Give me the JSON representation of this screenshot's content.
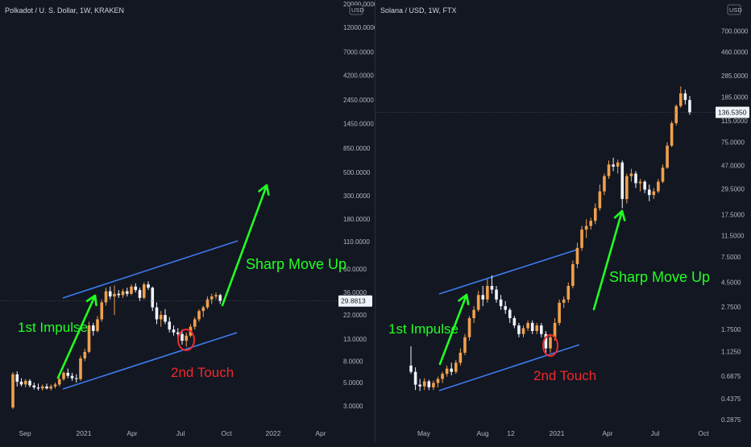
{
  "chart_data": [
    {
      "type": "candlestick",
      "title": "Polkadot / U. S. Dollar, 1W, KRAKEN",
      "price_scale": "log",
      "unit_badge": "USD",
      "last_price": "29.8813",
      "y_ticks": [
        "20000.0000",
        "12000.0000",
        "7000.0000",
        "4200.0000",
        "2450.0000",
        "1450.0000",
        "850.0000",
        "500.0000",
        "300.0000",
        "180.0000",
        "110.0000",
        "60.0000",
        "36.0000",
        "22.0000",
        "13.0000",
        "8.0000",
        "5.0000",
        "3.0000"
      ],
      "x_ticks": [
        "Sep",
        "2021",
        "Apr",
        "Jul",
        "Oct",
        "2022",
        "Apr"
      ],
      "annotations": [
        "1st Impulse",
        "Sharp Move Up",
        "2nd Touch"
      ],
      "candles": [
        {
          "o": 2.9,
          "h": 6.3,
          "l": 2.8,
          "c": 6.0
        },
        {
          "o": 6.0,
          "h": 6.4,
          "l": 4.6,
          "c": 5.1
        },
        {
          "o": 5.1,
          "h": 5.5,
          "l": 4.6,
          "c": 4.8
        },
        {
          "o": 4.8,
          "h": 5.4,
          "l": 4.5,
          "c": 5.2
        },
        {
          "o": 5.2,
          "h": 5.4,
          "l": 4.5,
          "c": 4.7
        },
        {
          "o": 4.7,
          "h": 5.0,
          "l": 4.3,
          "c": 4.5
        },
        {
          "o": 4.5,
          "h": 4.9,
          "l": 4.2,
          "c": 4.4
        },
        {
          "o": 4.4,
          "h": 4.8,
          "l": 4.2,
          "c": 4.6
        },
        {
          "o": 4.6,
          "h": 4.9,
          "l": 4.3,
          "c": 4.4
        },
        {
          "o": 4.4,
          "h": 4.8,
          "l": 4.2,
          "c": 4.6
        },
        {
          "o": 4.6,
          "h": 5.0,
          "l": 4.4,
          "c": 4.8
        },
        {
          "o": 4.8,
          "h": 5.6,
          "l": 4.6,
          "c": 5.4
        },
        {
          "o": 5.4,
          "h": 6.4,
          "l": 5.2,
          "c": 6.2
        },
        {
          "o": 6.2,
          "h": 6.8,
          "l": 5.5,
          "c": 5.8
        },
        {
          "o": 5.8,
          "h": 6.2,
          "l": 5.2,
          "c": 5.5
        },
        {
          "o": 5.5,
          "h": 6.0,
          "l": 5.0,
          "c": 5.4
        },
        {
          "o": 5.4,
          "h": 9.0,
          "l": 5.2,
          "c": 8.5
        },
        {
          "o": 8.5,
          "h": 10.5,
          "l": 8.0,
          "c": 9.8
        },
        {
          "o": 9.8,
          "h": 19.0,
          "l": 9.5,
          "c": 17.5
        },
        {
          "o": 17.5,
          "h": 18.5,
          "l": 14.0,
          "c": 15.5
        },
        {
          "o": 15.5,
          "h": 21.5,
          "l": 15.0,
          "c": 20.0
        },
        {
          "o": 20.0,
          "h": 31.0,
          "l": 19.0,
          "c": 29.0
        },
        {
          "o": 29.0,
          "h": 40.0,
          "l": 27.0,
          "c": 37.0
        },
        {
          "o": 37.0,
          "h": 41.0,
          "l": 31.0,
          "c": 33.0
        },
        {
          "o": 33.0,
          "h": 42.0,
          "l": 22.0,
          "c": 35.0
        },
        {
          "o": 35.0,
          "h": 38.0,
          "l": 32.0,
          "c": 34.0
        },
        {
          "o": 34.0,
          "h": 39.0,
          "l": 32.0,
          "c": 37.0
        },
        {
          "o": 37.0,
          "h": 40.0,
          "l": 33.0,
          "c": 35.0
        },
        {
          "o": 35.0,
          "h": 43.0,
          "l": 34.0,
          "c": 41.0
        },
        {
          "o": 41.0,
          "h": 44.0,
          "l": 36.0,
          "c": 38.0
        },
        {
          "o": 38.0,
          "h": 40.0,
          "l": 30.0,
          "c": 32.0
        },
        {
          "o": 32.0,
          "h": 45.0,
          "l": 31.0,
          "c": 43.0
        },
        {
          "o": 43.0,
          "h": 46.0,
          "l": 38.0,
          "c": 40.0
        },
        {
          "o": 40.0,
          "h": 41.0,
          "l": 24.0,
          "c": 26.0
        },
        {
          "o": 26.0,
          "h": 29.0,
          "l": 18.0,
          "c": 20.0
        },
        {
          "o": 20.0,
          "h": 24.0,
          "l": 17.0,
          "c": 22.0
        },
        {
          "o": 22.0,
          "h": 25.0,
          "l": 18.0,
          "c": 19.0
        },
        {
          "o": 19.0,
          "h": 21.0,
          "l": 15.0,
          "c": 16.0
        },
        {
          "o": 16.0,
          "h": 17.5,
          "l": 14.0,
          "c": 15.0
        },
        {
          "o": 15.0,
          "h": 16.5,
          "l": 13.0,
          "c": 14.5
        },
        {
          "o": 14.5,
          "h": 16.0,
          "l": 11.5,
          "c": 12.5
        },
        {
          "o": 12.5,
          "h": 15.0,
          "l": 11.0,
          "c": 14.0
        },
        {
          "o": 14.0,
          "h": 18.0,
          "l": 13.5,
          "c": 17.0
        },
        {
          "o": 17.0,
          "h": 21.0,
          "l": 16.0,
          "c": 20.0
        },
        {
          "o": 20.0,
          "h": 25.0,
          "l": 19.0,
          "c": 24.0
        },
        {
          "o": 24.0,
          "h": 27.0,
          "l": 21.0,
          "c": 26.0
        },
        {
          "o": 26.0,
          "h": 33.0,
          "l": 25.0,
          "c": 31.0
        },
        {
          "o": 31.0,
          "h": 35.0,
          "l": 28.0,
          "c": 33.0
        },
        {
          "o": 33.0,
          "h": 36.0,
          "l": 31.0,
          "c": 34.0
        },
        {
          "o": 34.0,
          "h": 35.0,
          "l": 28.0,
          "c": 29.9
        }
      ]
    },
    {
      "type": "candlestick",
      "title": "Solana / USD, 1W, FTX",
      "price_scale": "log",
      "unit_badge": "USD",
      "last_price": "136.5350",
      "y_ticks": [
        "700.0000",
        "460.0000",
        "285.0000",
        "185.0000",
        "115.0000",
        "75.0000",
        "47.0000",
        "29.5000",
        "17.5000",
        "11.5000",
        "7.5000",
        "4.5000",
        "2.7500",
        "1.7500",
        "1.1250",
        "0.6875",
        "0.4375",
        "0.2875"
      ],
      "x_ticks": [
        "May",
        "Aug",
        "12",
        "2021",
        "Apr",
        "Jul",
        "Oct"
      ],
      "annotations": [
        "1st Impulse",
        "Sharp Move Up",
        "2nd Touch"
      ],
      "candles": [
        {
          "o": 0.85,
          "h": 1.25,
          "l": 0.72,
          "c": 0.75
        },
        {
          "o": 0.75,
          "h": 0.82,
          "l": 0.52,
          "c": 0.58
        },
        {
          "o": 0.58,
          "h": 0.65,
          "l": 0.51,
          "c": 0.56
        },
        {
          "o": 0.56,
          "h": 0.66,
          "l": 0.52,
          "c": 0.62
        },
        {
          "o": 0.62,
          "h": 0.64,
          "l": 0.52,
          "c": 0.55
        },
        {
          "o": 0.55,
          "h": 0.63,
          "l": 0.52,
          "c": 0.6
        },
        {
          "o": 0.6,
          "h": 0.68,
          "l": 0.55,
          "c": 0.65
        },
        {
          "o": 0.65,
          "h": 0.75,
          "l": 0.6,
          "c": 0.72
        },
        {
          "o": 0.72,
          "h": 0.85,
          "l": 0.68,
          "c": 0.8
        },
        {
          "o": 0.8,
          "h": 0.9,
          "l": 0.7,
          "c": 0.75
        },
        {
          "o": 0.75,
          "h": 0.95,
          "l": 0.72,
          "c": 0.9
        },
        {
          "o": 0.9,
          "h": 1.2,
          "l": 0.85,
          "c": 1.1
        },
        {
          "o": 1.1,
          "h": 1.6,
          "l": 1.05,
          "c": 1.5
        },
        {
          "o": 1.5,
          "h": 2.3,
          "l": 1.4,
          "c": 2.2
        },
        {
          "o": 2.2,
          "h": 2.8,
          "l": 2.0,
          "c": 2.6
        },
        {
          "o": 2.6,
          "h": 3.8,
          "l": 2.5,
          "c": 3.5
        },
        {
          "o": 3.5,
          "h": 4.2,
          "l": 2.8,
          "c": 3.2
        },
        {
          "o": 3.2,
          "h": 4.8,
          "l": 3.0,
          "c": 4.2
        },
        {
          "o": 4.2,
          "h": 5.2,
          "l": 3.6,
          "c": 3.9
        },
        {
          "o": 3.9,
          "h": 4.2,
          "l": 3.0,
          "c": 3.2
        },
        {
          "o": 3.2,
          "h": 3.5,
          "l": 2.6,
          "c": 2.8
        },
        {
          "o": 2.8,
          "h": 3.1,
          "l": 2.4,
          "c": 2.6
        },
        {
          "o": 2.6,
          "h": 2.7,
          "l": 2.0,
          "c": 2.2
        },
        {
          "o": 2.2,
          "h": 2.3,
          "l": 1.8,
          "c": 1.9
        },
        {
          "o": 1.9,
          "h": 2.0,
          "l": 1.5,
          "c": 1.6
        },
        {
          "o": 1.6,
          "h": 1.9,
          "l": 1.5,
          "c": 1.8
        },
        {
          "o": 1.8,
          "h": 2.1,
          "l": 1.7,
          "c": 2.0
        },
        {
          "o": 2.0,
          "h": 2.1,
          "l": 1.6,
          "c": 1.7
        },
        {
          "o": 1.7,
          "h": 2.0,
          "l": 1.6,
          "c": 1.9
        },
        {
          "o": 1.9,
          "h": 2.0,
          "l": 1.5,
          "c": 1.6
        },
        {
          "o": 1.6,
          "h": 1.7,
          "l": 1.1,
          "c": 1.2
        },
        {
          "o": 1.2,
          "h": 1.6,
          "l": 1.1,
          "c": 1.5
        },
        {
          "o": 1.5,
          "h": 2.2,
          "l": 1.4,
          "c": 2.0
        },
        {
          "o": 2.0,
          "h": 3.2,
          "l": 1.9,
          "c": 3.0
        },
        {
          "o": 3.0,
          "h": 3.4,
          "l": 2.7,
          "c": 3.2
        },
        {
          "o": 3.2,
          "h": 4.5,
          "l": 3.0,
          "c": 4.2
        },
        {
          "o": 4.2,
          "h": 7.0,
          "l": 4.0,
          "c": 6.5
        },
        {
          "o": 6.5,
          "h": 10.0,
          "l": 6.0,
          "c": 9.0
        },
        {
          "o": 9.0,
          "h": 14.0,
          "l": 8.5,
          "c": 13.0
        },
        {
          "o": 13.0,
          "h": 16.0,
          "l": 11.0,
          "c": 14.0
        },
        {
          "o": 14.0,
          "h": 16.5,
          "l": 13.0,
          "c": 15.5
        },
        {
          "o": 15.5,
          "h": 22.0,
          "l": 14.5,
          "c": 20.0
        },
        {
          "o": 20.0,
          "h": 32.0,
          "l": 19.0,
          "c": 28.0
        },
        {
          "o": 28.0,
          "h": 40.0,
          "l": 26.0,
          "c": 38.0
        },
        {
          "o": 38.0,
          "h": 52.0,
          "l": 36.0,
          "c": 48.0
        },
        {
          "o": 48.0,
          "h": 55.0,
          "l": 42.0,
          "c": 46.0
        },
        {
          "o": 46.0,
          "h": 53.0,
          "l": 40.0,
          "c": 50.0
        },
        {
          "o": 50.0,
          "h": 52.0,
          "l": 20.0,
          "c": 24.0
        },
        {
          "o": 24.0,
          "h": 40.0,
          "l": 22.0,
          "c": 38.0
        },
        {
          "o": 38.0,
          "h": 44.0,
          "l": 34.0,
          "c": 40.0
        },
        {
          "o": 40.0,
          "h": 42.0,
          "l": 30.0,
          "c": 33.0
        },
        {
          "o": 33.0,
          "h": 36.0,
          "l": 28.0,
          "c": 34.0
        },
        {
          "o": 34.0,
          "h": 35.0,
          "l": 27.0,
          "c": 29.0
        },
        {
          "o": 29.0,
          "h": 32.0,
          "l": 23.0,
          "c": 26.0
        },
        {
          "o": 26.0,
          "h": 30.0,
          "l": 24.0,
          "c": 28.0
        },
        {
          "o": 28.0,
          "h": 36.0,
          "l": 27.0,
          "c": 34.0
        },
        {
          "o": 34.0,
          "h": 48.0,
          "l": 33.0,
          "c": 45.0
        },
        {
          "o": 45.0,
          "h": 75.0,
          "l": 44.0,
          "c": 70.0
        },
        {
          "o": 70.0,
          "h": 115.0,
          "l": 68.0,
          "c": 110.0
        },
        {
          "o": 110.0,
          "h": 160.0,
          "l": 105.0,
          "c": 155.0
        },
        {
          "o": 155.0,
          "h": 230.0,
          "l": 150.0,
          "c": 200.0
        },
        {
          "o": 200.0,
          "h": 215.0,
          "l": 160.0,
          "c": 175.0
        },
        {
          "o": 175.0,
          "h": 190.0,
          "l": 130.0,
          "c": 136.5
        }
      ]
    }
  ],
  "style": {
    "bg": "#131722",
    "up_color": "#f0a04b",
    "down_color": "#f0f3fa",
    "arrow_color": "#22ff22",
    "channel_color": "#3f7af0",
    "touch_color": "#ee2a2a",
    "axis_text": "#b2b5be"
  }
}
